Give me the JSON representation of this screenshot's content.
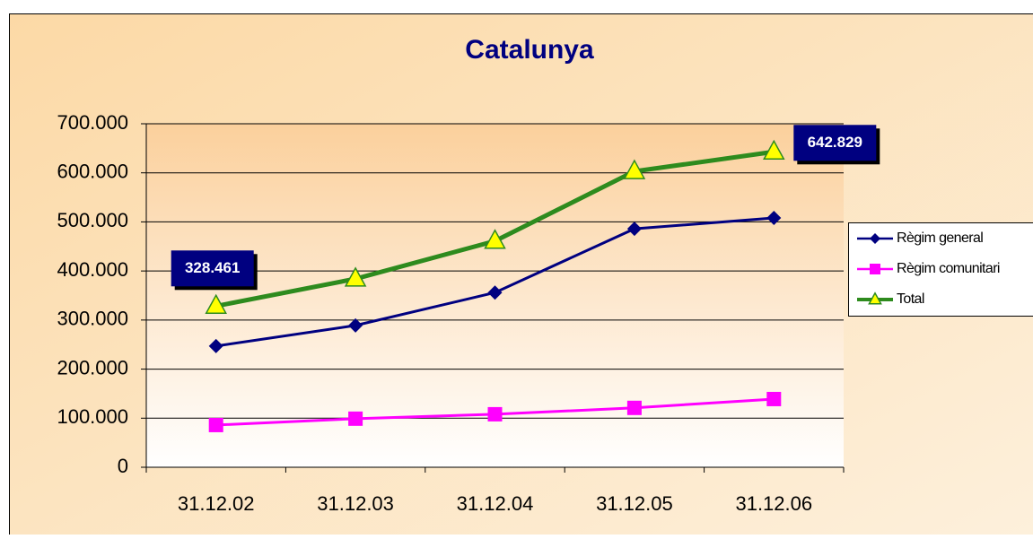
{
  "chart_data": {
    "type": "line",
    "title": "Catalunya",
    "categories": [
      "31.12.02",
      "31.12.03",
      "31.12.04",
      "31.12.05",
      "31.12.06"
    ],
    "series": [
      {
        "name": "Règim general",
        "color": "#000080",
        "marker": "diamond",
        "values": [
          247000,
          289000,
          356000,
          486000,
          508000
        ]
      },
      {
        "name": "Règim comunitari",
        "color": "#ff00ff",
        "marker": "square",
        "values": [
          86000,
          99000,
          108000,
          121000,
          139000
        ]
      },
      {
        "name": "Total",
        "color": "#2e8b1e",
        "marker": "triangle",
        "values": [
          328461,
          384000,
          461000,
          603000,
          642829
        ],
        "value_labels": [
          "328.461",
          null,
          null,
          null,
          "642.829"
        ]
      }
    ],
    "ylim": [
      0,
      700000
    ],
    "yticks": [
      0,
      {
        "value": 100000,
        "label": "100.000"
      },
      {
        "value": 200000,
        "label": "200.000"
      },
      {
        "value": 300000,
        "label": "300.000"
      },
      {
        "value": 400000,
        "label": "400.000"
      },
      {
        "value": 500000,
        "label": "500.000"
      },
      {
        "value": 600000,
        "label": "600.000"
      },
      {
        "value": 700000,
        "label": "700.000"
      }
    ],
    "grid": true,
    "legend": "right"
  }
}
